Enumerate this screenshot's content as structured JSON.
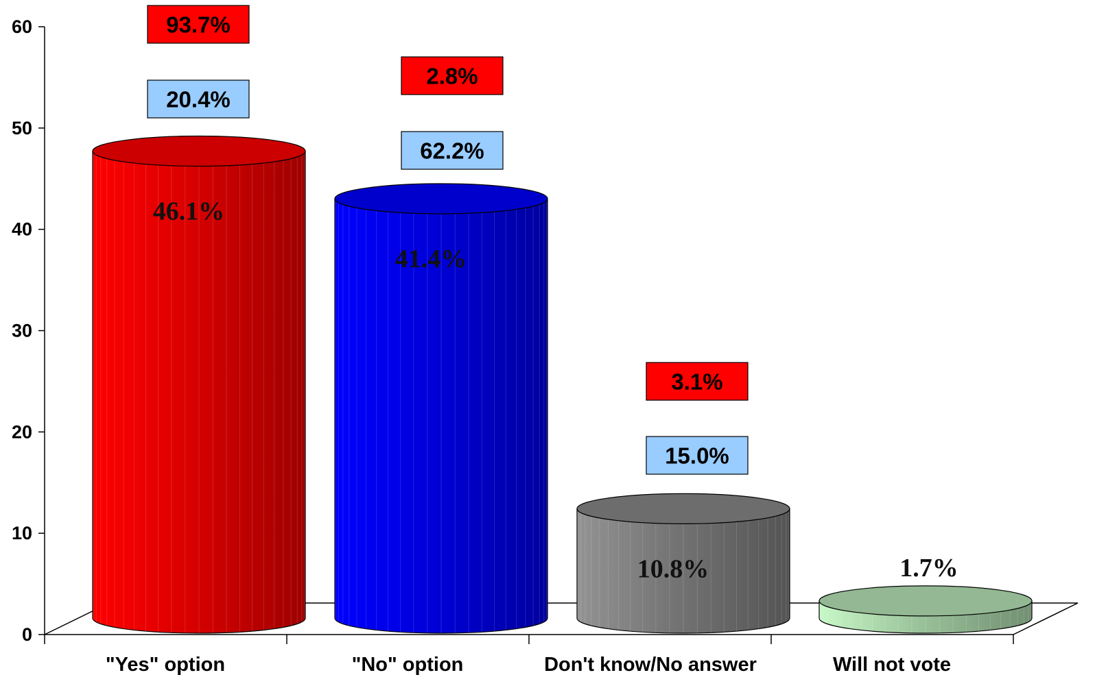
{
  "chart_data": {
    "type": "bar",
    "style": "3d-cylinder",
    "categories": [
      "\"Yes\" option",
      "\"No\" option",
      "Don't know/No answer",
      "Will not vote"
    ],
    "values": [
      46.1,
      41.4,
      10.8,
      1.7
    ],
    "value_labels": [
      "46.1%",
      "41.4%",
      "10.8%",
      "1.7%"
    ],
    "bar_colors": [
      "#ff0000",
      "#0000ff",
      "#888888",
      "#b8e6b8"
    ],
    "ylim": [
      0,
      60
    ],
    "yticks": [
      0,
      10,
      20,
      30,
      40,
      50,
      60
    ],
    "grid": false,
    "title": "",
    "xlabel": "",
    "ylabel": "",
    "annotations": [
      {
        "category": "\"Yes\" option",
        "red_box": "93.7%",
        "blue_box": "20.4%"
      },
      {
        "category": "\"No\" option",
        "red_box": "2.8%",
        "blue_box": "62.2%"
      },
      {
        "category": "Don't know/No answer",
        "red_box": "3.1%",
        "blue_box": "15.0%"
      }
    ],
    "annotation_colors": {
      "red_box": "#ff0000",
      "blue_box": "#99ccff"
    }
  }
}
